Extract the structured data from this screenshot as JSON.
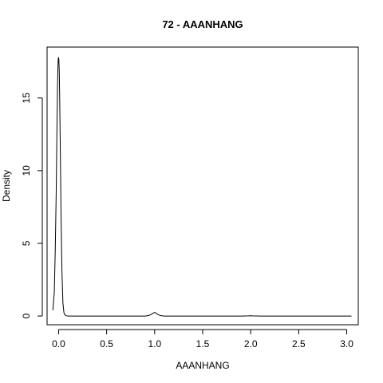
{
  "chart_data": {
    "type": "line",
    "title": "72 - AAANHANG",
    "xlabel": "AAANHANG",
    "ylabel": "Density",
    "xlim": [
      -0.12,
      3.12
    ],
    "ylim": [
      -0.6,
      18.5
    ],
    "x_ticks": [
      "0.0",
      "0.5",
      "1.0",
      "1.5",
      "2.0",
      "2.5",
      "3.0"
    ],
    "y_ticks": [
      "0",
      "5",
      "10",
      "15"
    ],
    "series": [
      {
        "x": [
          -0.06,
          -0.045,
          -0.035,
          -0.025,
          -0.018,
          -0.012,
          -0.007,
          -0.003,
          0.0,
          0.003,
          0.007,
          0.012,
          0.018,
          0.025,
          0.035,
          0.045,
          0.055,
          0.065,
          0.08,
          0.1,
          0.2,
          0.5,
          0.9,
          0.94,
          0.97,
          0.99,
          1.0,
          1.01,
          1.03,
          1.06,
          1.1,
          1.5,
          1.9,
          1.98,
          2.0,
          2.02,
          2.1,
          2.5,
          3.0,
          3.05
        ],
        "y": [
          0.4,
          1.6,
          4.5,
          8.5,
          12.5,
          15.5,
          17.2,
          17.7,
          17.8,
          17.6,
          16.8,
          14.6,
          11.3,
          7.2,
          3.0,
          0.9,
          0.25,
          0.08,
          0.02,
          0.0,
          0.0,
          0.0,
          0.0,
          0.04,
          0.14,
          0.22,
          0.24,
          0.22,
          0.12,
          0.03,
          0.0,
          0.0,
          0.0,
          0.01,
          0.02,
          0.01,
          0.0,
          0.0,
          0.0,
          0.0
        ]
      }
    ]
  }
}
